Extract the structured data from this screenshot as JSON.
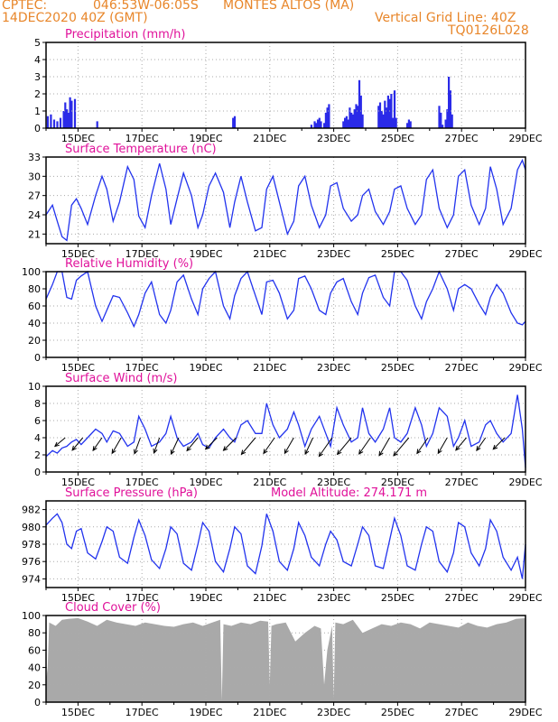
{
  "header": {
    "source": "CPTEC:",
    "coords": "046:53W-06:05S",
    "location": "MONTES ALTOS (MA)",
    "run": "14DEC2020 40Z (GMT)",
    "grid_note": "Vertical Grid Line: 40Z",
    "model": "TQ0126L028"
  },
  "colors": {
    "header": "#e8862a",
    "title": "#e0119a",
    "line": "#2233ee",
    "bar": "#2a2ae8",
    "cloud": "#a9a9a9",
    "frame": "#000000",
    "grid": "#aaaaaa"
  },
  "x_axis": {
    "start": 14.0,
    "end": 29.0,
    "ticks": [
      "15DEC",
      "17DEC",
      "19DEC",
      "21DEC",
      "23DEC",
      "25DEC",
      "27DEC",
      "29DEC"
    ],
    "tick_days": [
      15,
      17,
      19,
      21,
      23,
      25,
      27,
      29
    ]
  },
  "chart_data": [
    {
      "id": "precip",
      "type": "bar",
      "title": "Precipitation (mm/h)",
      "ylim": [
        0,
        5
      ],
      "yticks": [
        0,
        1,
        2,
        3,
        4,
        5
      ],
      "x": [
        14.05,
        14.15,
        14.25,
        14.35,
        14.45,
        14.55,
        14.6,
        14.65,
        14.7,
        14.75,
        14.8,
        14.9,
        15.6,
        19.85,
        19.9,
        22.3,
        22.4,
        22.45,
        22.5,
        22.55,
        22.6,
        22.7,
        22.75,
        22.8,
        22.85,
        23.3,
        23.35,
        23.4,
        23.45,
        23.5,
        23.55,
        23.6,
        23.65,
        23.7,
        23.75,
        23.8,
        23.85,
        23.9,
        24.4,
        24.45,
        24.5,
        24.55,
        24.6,
        24.65,
        24.7,
        24.75,
        24.8,
        24.85,
        24.9,
        24.95,
        25.3,
        25.35,
        25.4,
        26.3,
        26.35,
        26.4,
        26.5,
        26.55,
        26.6,
        26.65,
        26.7
      ],
      "values": [
        0.7,
        0.8,
        0.5,
        0.4,
        0.6,
        1.0,
        1.5,
        1.1,
        0.9,
        1.8,
        1.6,
        1.7,
        0.4,
        0.6,
        0.7,
        0.2,
        0.4,
        0.3,
        0.5,
        0.6,
        0.4,
        0.3,
        0.9,
        1.2,
        1.4,
        0.4,
        0.6,
        0.7,
        0.5,
        1.2,
        0.9,
        0.8,
        1.1,
        1.4,
        1.3,
        2.8,
        1.9,
        0.8,
        1.3,
        1.5,
        1.0,
        0.8,
        1.6,
        1.2,
        1.9,
        1.7,
        2.0,
        0.6,
        2.2,
        0.6,
        0.3,
        0.5,
        0.4,
        1.3,
        0.9,
        0.2,
        0.5,
        1.1,
        3.0,
        2.2,
        0.8
      ]
    },
    {
      "id": "temperature",
      "type": "line",
      "title": "Surface Temperature (nC)",
      "ylim": [
        19.5,
        33
      ],
      "yticks": [
        21,
        24,
        27,
        30,
        33
      ],
      "x": [
        14.0,
        14.2,
        14.35,
        14.5,
        14.65,
        14.8,
        14.95,
        15.1,
        15.3,
        15.55,
        15.75,
        15.9,
        16.1,
        16.3,
        16.55,
        16.75,
        16.9,
        17.1,
        17.3,
        17.55,
        17.75,
        17.9,
        18.1,
        18.3,
        18.55,
        18.75,
        18.9,
        19.1,
        19.3,
        19.55,
        19.75,
        19.9,
        20.1,
        20.3,
        20.55,
        20.75,
        20.9,
        21.1,
        21.3,
        21.55,
        21.75,
        21.9,
        22.1,
        22.3,
        22.55,
        22.75,
        22.9,
        23.1,
        23.3,
        23.55,
        23.75,
        23.9,
        24.1,
        24.3,
        24.55,
        24.75,
        24.9,
        25.1,
        25.3,
        25.55,
        25.75,
        25.9,
        26.1,
        26.3,
        26.55,
        26.75,
        26.9,
        27.1,
        27.3,
        27.55,
        27.75,
        27.9,
        28.1,
        28.3,
        28.55,
        28.75,
        28.9,
        29.0
      ],
      "values": [
        24.0,
        25.5,
        23.0,
        20.6,
        20.0,
        25.5,
        26.5,
        25.0,
        22.5,
        27.0,
        30.0,
        28.0,
        23.0,
        26.0,
        31.5,
        29.5,
        23.8,
        22.0,
        27.0,
        32.0,
        28.0,
        22.5,
        26.5,
        30.5,
        27.0,
        22.0,
        24.0,
        28.5,
        30.5,
        27.5,
        22.0,
        26.0,
        30.0,
        26.0,
        21.5,
        22.0,
        28.0,
        30.0,
        26.0,
        21.0,
        23.0,
        28.5,
        30.0,
        25.5,
        22.0,
        24.0,
        28.5,
        29.0,
        25.0,
        23.0,
        24.0,
        27.0,
        28.0,
        24.5,
        22.5,
        24.5,
        28.0,
        28.5,
        25.0,
        22.5,
        24.0,
        29.5,
        31.0,
        25.0,
        22.0,
        24.0,
        30.0,
        31.0,
        25.5,
        22.5,
        25.0,
        31.5,
        28.0,
        22.5,
        25.0,
        31.0,
        32.5,
        31.0
      ]
    },
    {
      "id": "humidity",
      "type": "line",
      "title": "Relative Humidity (%)",
      "ylim": [
        0,
        100
      ],
      "yticks": [
        0,
        20,
        40,
        60,
        80,
        100
      ],
      "x": [
        14.0,
        14.2,
        14.35,
        14.5,
        14.65,
        14.8,
        14.95,
        15.1,
        15.3,
        15.55,
        15.75,
        15.9,
        16.1,
        16.3,
        16.55,
        16.75,
        16.9,
        17.1,
        17.3,
        17.55,
        17.75,
        17.9,
        18.1,
        18.3,
        18.55,
        18.75,
        18.9,
        19.1,
        19.3,
        19.55,
        19.75,
        19.9,
        20.1,
        20.3,
        20.55,
        20.75,
        20.9,
        21.1,
        21.3,
        21.55,
        21.75,
        21.9,
        22.1,
        22.3,
        22.55,
        22.75,
        22.9,
        23.1,
        23.3,
        23.55,
        23.75,
        23.9,
        24.1,
        24.3,
        24.55,
        24.75,
        24.9,
        25.1,
        25.3,
        25.55,
        25.75,
        25.9,
        26.1,
        26.3,
        26.55,
        26.75,
        26.9,
        27.1,
        27.3,
        27.55,
        27.75,
        27.9,
        28.1,
        28.3,
        28.55,
        28.75,
        28.9,
        29.0
      ],
      "values": [
        68,
        85,
        100,
        100,
        70,
        68,
        90,
        95,
        100,
        60,
        42,
        55,
        72,
        70,
        52,
        36,
        50,
        75,
        88,
        50,
        40,
        55,
        88,
        96,
        68,
        50,
        80,
        92,
        100,
        60,
        45,
        72,
        92,
        100,
        72,
        50,
        88,
        90,
        75,
        45,
        55,
        92,
        95,
        80,
        55,
        50,
        75,
        88,
        92,
        65,
        50,
        75,
        93,
        96,
        70,
        60,
        100,
        100,
        90,
        60,
        45,
        65,
        80,
        100,
        80,
        55,
        80,
        85,
        80,
        62,
        50,
        70,
        85,
        75,
        52,
        40,
        38,
        42
      ]
    },
    {
      "id": "wind",
      "type": "line",
      "title": "Surface Wind (m/s)",
      "ylim": [
        0,
        10
      ],
      "yticks": [
        0,
        2,
        4,
        6,
        8,
        10
      ],
      "x": [
        14.0,
        14.2,
        14.35,
        14.5,
        14.65,
        14.8,
        14.95,
        15.1,
        15.3,
        15.55,
        15.75,
        15.9,
        16.1,
        16.3,
        16.55,
        16.75,
        16.9,
        17.1,
        17.3,
        17.55,
        17.75,
        17.9,
        18.1,
        18.3,
        18.55,
        18.75,
        18.9,
        19.1,
        19.3,
        19.55,
        19.75,
        19.9,
        20.1,
        20.3,
        20.55,
        20.75,
        20.9,
        21.1,
        21.3,
        21.55,
        21.75,
        21.9,
        22.1,
        22.3,
        22.55,
        22.75,
        22.9,
        23.1,
        23.3,
        23.55,
        23.75,
        23.9,
        24.1,
        24.3,
        24.55,
        24.75,
        24.9,
        25.1,
        25.3,
        25.55,
        25.75,
        25.9,
        26.1,
        26.3,
        26.55,
        26.75,
        26.9,
        27.1,
        27.3,
        27.55,
        27.75,
        27.9,
        28.1,
        28.3,
        28.55,
        28.75,
        28.9,
        29.0
      ],
      "values": [
        1.8,
        2.5,
        2.2,
        2.8,
        3.0,
        3.5,
        3.8,
        3.2,
        4.0,
        5.0,
        4.5,
        3.5,
        4.8,
        4.5,
        3.0,
        3.5,
        6.5,
        5.0,
        3.0,
        3.5,
        4.5,
        6.5,
        4.0,
        3.0,
        3.5,
        4.5,
        3.2,
        2.8,
        4.0,
        5.0,
        4.0,
        3.5,
        5.5,
        6.0,
        4.5,
        4.5,
        8.0,
        5.5,
        4.0,
        5.0,
        7.0,
        5.5,
        3.0,
        5.0,
        6.5,
        4.5,
        3.0,
        7.5,
        5.5,
        3.5,
        4.0,
        7.5,
        4.5,
        3.5,
        5.0,
        7.5,
        4.0,
        3.5,
        4.5,
        7.5,
        5.5,
        3.0,
        4.5,
        7.5,
        6.5,
        3.0,
        4.0,
        6.0,
        3.0,
        3.5,
        5.5,
        6.0,
        4.5,
        3.5,
        4.5,
        9.0,
        5.0,
        0.5
      ],
      "arrows": {
        "x": [
          14.6,
          15.15,
          15.75,
          16.35,
          16.95,
          17.55,
          18.15,
          18.75,
          19.35,
          19.95,
          20.55,
          21.15,
          21.75,
          22.35,
          22.95,
          23.55,
          24.15,
          24.75,
          25.35,
          25.95,
          26.55,
          27.15,
          27.75,
          28.35
        ],
        "speed": [
          2.2,
          3.0,
          2.8,
          3.5,
          3.2,
          3.0,
          3.5,
          3.2,
          3.0,
          3.5,
          4.5,
          3.8,
          3.5,
          3.5,
          4.8,
          4.5,
          4.0,
          4.2,
          5.0,
          3.8,
          3.5,
          3.0,
          2.8,
          3.0
        ],
        "direction_deg": [
          220,
          230,
          235,
          240,
          250,
          250,
          245,
          230,
          225,
          225,
          230,
          235,
          240,
          245,
          235,
          230,
          235,
          240,
          230,
          235,
          240,
          230,
          235,
          225
        ]
      }
    },
    {
      "id": "pressure",
      "type": "line",
      "title": "Surface Pressure (hPa)",
      "annotation": "Model Altitude: 274.171 m",
      "ylim": [
        973,
        983
      ],
      "yticks": [
        974,
        976,
        978,
        980,
        982
      ],
      "x": [
        14.0,
        14.2,
        14.35,
        14.5,
        14.65,
        14.8,
        14.95,
        15.1,
        15.3,
        15.55,
        15.75,
        15.9,
        16.1,
        16.3,
        16.55,
        16.75,
        16.9,
        17.1,
        17.3,
        17.55,
        17.75,
        17.9,
        18.1,
        18.3,
        18.55,
        18.75,
        18.9,
        19.1,
        19.3,
        19.55,
        19.75,
        19.9,
        20.1,
        20.3,
        20.55,
        20.75,
        20.9,
        21.1,
        21.3,
        21.55,
        21.75,
        21.9,
        22.1,
        22.3,
        22.55,
        22.75,
        22.9,
        23.1,
        23.3,
        23.55,
        23.75,
        23.9,
        24.1,
        24.3,
        24.55,
        24.75,
        24.9,
        25.1,
        25.3,
        25.55,
        25.75,
        25.9,
        26.1,
        26.3,
        26.55,
        26.75,
        26.9,
        27.1,
        27.3,
        27.55,
        27.75,
        27.9,
        28.1,
        28.3,
        28.55,
        28.75,
        28.9,
        29.0
      ],
      "values": [
        980.2,
        981.0,
        981.5,
        980.5,
        978.0,
        977.5,
        979.5,
        979.8,
        977.0,
        976.3,
        978.3,
        980.0,
        979.5,
        976.5,
        975.8,
        978.8,
        980.8,
        979.0,
        976.2,
        975.2,
        977.5,
        980.0,
        979.2,
        975.8,
        975.0,
        978.0,
        980.5,
        979.5,
        976.0,
        974.8,
        977.5,
        980.0,
        979.2,
        975.5,
        974.6,
        977.8,
        981.5,
        979.5,
        976.0,
        975.0,
        977.5,
        980.5,
        979.0,
        976.5,
        975.5,
        978.0,
        979.5,
        978.5,
        976.0,
        975.5,
        978.0,
        980.0,
        979.0,
        975.5,
        975.2,
        978.5,
        981.0,
        979.0,
        975.5,
        975.0,
        978.0,
        980.0,
        979.5,
        976.0,
        974.8,
        977.0,
        980.5,
        980.0,
        977.0,
        975.5,
        977.5,
        980.8,
        979.5,
        976.5,
        975.0,
        976.5,
        974.0,
        978.0
      ]
    },
    {
      "id": "cloud",
      "type": "area",
      "title": "Cloud Cover (%)",
      "ylim": [
        0,
        100
      ],
      "yticks": [
        0,
        20,
        40,
        60,
        80,
        100
      ],
      "x": [
        14.0,
        14.05,
        14.1,
        14.2,
        14.3,
        14.5,
        14.7,
        15.0,
        15.3,
        15.6,
        15.9,
        16.2,
        16.5,
        16.8,
        17.1,
        17.4,
        17.7,
        18.0,
        18.3,
        18.6,
        18.9,
        19.2,
        19.45,
        19.5,
        19.55,
        19.8,
        20.1,
        20.4,
        20.7,
        20.95,
        21.0,
        21.05,
        21.2,
        21.5,
        21.8,
        22.1,
        22.4,
        22.6,
        22.7,
        22.8,
        22.95,
        23.0,
        23.05,
        23.3,
        23.6,
        23.9,
        24.2,
        24.5,
        24.8,
        25.1,
        25.4,
        25.7,
        26.0,
        26.3,
        26.6,
        26.9,
        27.2,
        27.5,
        27.8,
        28.1,
        28.4,
        28.7,
        29.0
      ],
      "values": [
        25,
        40,
        92,
        90,
        88,
        95,
        96,
        97,
        93,
        88,
        95,
        92,
        90,
        88,
        92,
        90,
        88,
        87,
        90,
        92,
        88,
        92,
        95,
        2,
        90,
        88,
        92,
        90,
        94,
        93,
        20,
        88,
        90,
        92,
        70,
        80,
        88,
        85,
        20,
        60,
        88,
        5,
        92,
        90,
        95,
        80,
        85,
        90,
        88,
        92,
        90,
        85,
        92,
        90,
        88,
        86,
        92,
        88,
        86,
        90,
        92,
        96,
        97
      ]
    }
  ]
}
